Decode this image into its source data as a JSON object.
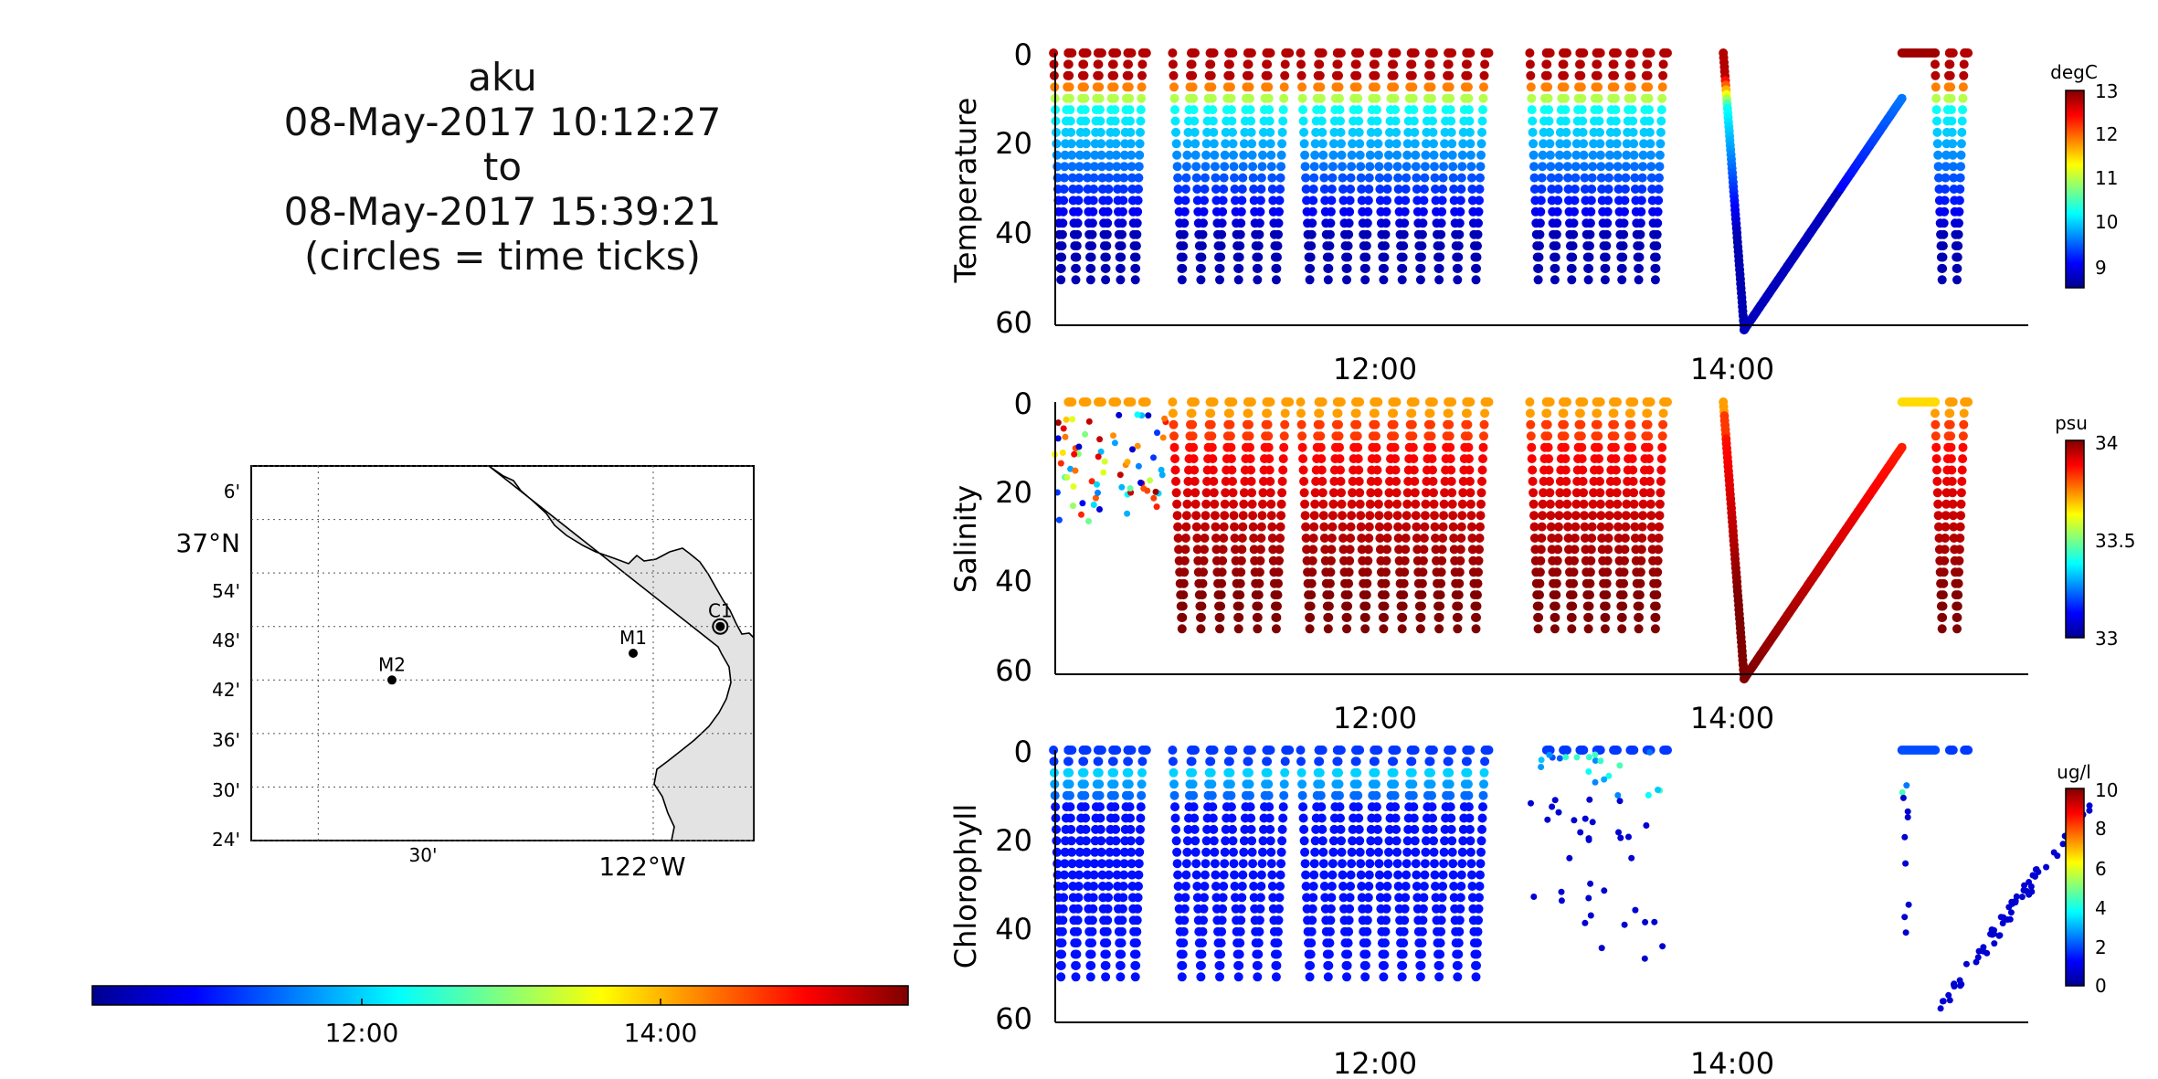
{
  "header": {
    "title": "aku",
    "start": "08-May-2017 10:12:27",
    "to": "to",
    "end": "08-May-2017 15:39:21",
    "note": "(circles = time ticks)"
  },
  "map": {
    "lat_ticks": [
      "6'",
      "37°N",
      "54'",
      "48'",
      "42'",
      "36'",
      "30'",
      "24'"
    ],
    "lon_ticks": [
      "30'",
      "122°W"
    ],
    "stations": [
      {
        "name": "M2",
        "lon": -122.39,
        "lat": 36.7
      },
      {
        "name": "M1",
        "lon": -122.03,
        "lat": 36.75
      },
      {
        "name": "C1",
        "lon": -121.9,
        "lat": 36.8
      }
    ],
    "land_color": "#e3e3e3",
    "colorbar": {
      "tick_labels": [
        "12:00",
        "14:00"
      ],
      "colormap": "jet"
    }
  },
  "chart_data": [
    {
      "type": "scatter",
      "ylabel": "Temperature",
      "units": "degC",
      "x_ticks": [
        "12:00",
        "14:00"
      ],
      "y_ticks": [
        "0",
        "20",
        "40",
        "60"
      ],
      "ylim": [
        60,
        0
      ],
      "color_ticks": [
        "13",
        "12",
        "11",
        "10",
        "9"
      ],
      "clim": [
        8.6,
        13.2
      ],
      "colormap": "jet",
      "profile_depths": [
        0,
        50
      ],
      "yo_groups": [
        {
          "start": "10:12",
          "end": "10:42",
          "profiles": 6
        },
        {
          "start": "10:52",
          "end": "11:30",
          "profiles": 6
        },
        {
          "start": "11:35",
          "end": "12:37",
          "profiles": 10
        },
        {
          "start": "12:52",
          "end": "13:37",
          "profiles": 8
        },
        {
          "start": "15:08",
          "end": "15:18",
          "profiles": 2
        }
      ],
      "descent": {
        "start": "13:57",
        "end": "14:04",
        "depth_start": 0,
        "depth_end": 61
      },
      "ramp": {
        "start": "14:04",
        "end": "14:57",
        "depth_start": 61,
        "depth_end": 10
      }
    },
    {
      "type": "scatter",
      "ylabel": "Salinity",
      "units": "psu",
      "x_ticks": [
        "12:00",
        "14:00"
      ],
      "y_ticks": [
        "0",
        "20",
        "40",
        "60"
      ],
      "ylim": [
        60,
        0
      ],
      "color_ticks": [
        "34",
        "33.5",
        "33"
      ],
      "clim": [
        33.0,
        34.0
      ],
      "colormap": "jet"
    },
    {
      "type": "scatter",
      "ylabel": "Chlorophyll",
      "units": "ug/l",
      "x_ticks": [
        "12:00",
        "14:00"
      ],
      "y_ticks": [
        "0",
        "20",
        "40",
        "60"
      ],
      "ylim": [
        60,
        0
      ],
      "color_ticks": [
        "10",
        "8",
        "6",
        "4",
        "2",
        "0"
      ],
      "clim": [
        0,
        10
      ],
      "colormap": "jet"
    }
  ]
}
